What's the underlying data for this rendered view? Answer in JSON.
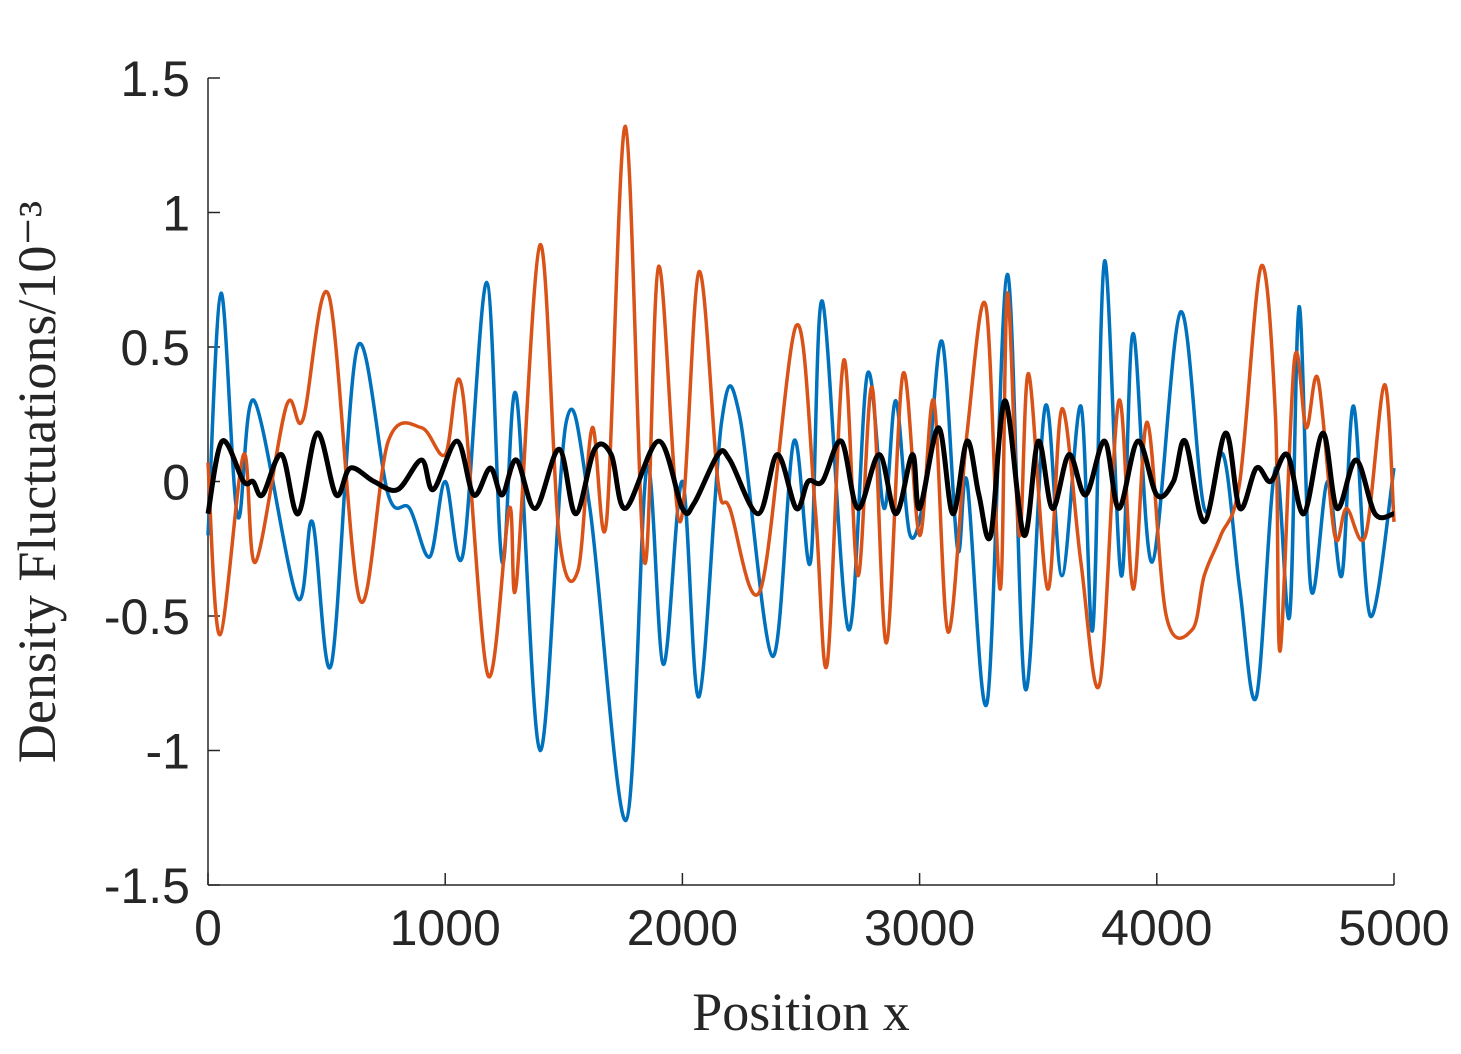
{
  "chart_data": {
    "type": "line",
    "xlabel": "Position x",
    "ylabel": "Density Fluctuations/10⁻³",
    "xlim": [
      0,
      5000
    ],
    "xticks": [
      0,
      1000,
      2000,
      3000,
      4000,
      5000
    ],
    "ylim": [
      -1.5,
      1.5
    ],
    "yticks": [
      -1.5,
      -1,
      -0.5,
      0,
      0.5,
      1,
      1.5
    ],
    "series": [
      {
        "color": "#0072BD",
        "x": [
          0,
          55,
          125,
          195,
          375,
          440,
          520,
          630,
          760,
          850,
          935,
          1000,
          1075,
          1175,
          1240,
          1300,
          1400,
          1510,
          1610,
          1762,
          1850,
          1920,
          2000,
          2070,
          2165,
          2240,
          2380,
          2470,
          2540,
          2590,
          2700,
          2780,
          2850,
          2900,
          2960,
          3030,
          3095,
          3160,
          3200,
          3285,
          3370,
          3445,
          3530,
          3600,
          3680,
          3730,
          3780,
          3850,
          3900,
          3980,
          4100,
          4200,
          4280,
          4350,
          4420,
          4500,
          4560,
          4600,
          4650,
          4720,
          4780,
          4830,
          4900,
          5000
        ],
        "values": [
          -0.2,
          0.7,
          -0.13,
          0.3,
          -0.43,
          -0.15,
          -0.68,
          0.5,
          -0.05,
          -0.1,
          -0.28,
          0.0,
          -0.27,
          0.74,
          -0.3,
          0.32,
          -1.0,
          0.22,
          -0.1,
          -1.26,
          0.05,
          -0.68,
          0.0,
          -0.8,
          0.22,
          0.25,
          -0.65,
          0.15,
          -0.3,
          0.67,
          -0.55,
          0.4,
          -0.1,
          0.3,
          -0.2,
          0.0,
          0.52,
          -0.25,
          0.0,
          -0.82,
          0.77,
          -0.77,
          0.28,
          -0.35,
          0.28,
          -0.55,
          0.82,
          -0.35,
          0.55,
          -0.3,
          0.63,
          -0.1,
          0.1,
          -0.4,
          -0.8,
          0.05,
          -0.5,
          0.65,
          -0.4,
          0.0,
          -0.35,
          0.28,
          -0.5,
          0.05
        ]
      },
      {
        "color": "#D95319",
        "x": [
          0,
          50,
          150,
          200,
          330,
          400,
          510,
          640,
          760,
          900,
          1000,
          1070,
          1180,
          1270,
          1300,
          1400,
          1480,
          1560,
          1620,
          1680,
          1760,
          1840,
          1900,
          1990,
          2070,
          2150,
          2200,
          2330,
          2480,
          2560,
          2610,
          2680,
          2740,
          2800,
          2860,
          2930,
          3000,
          3060,
          3120,
          3200,
          3280,
          3340,
          3370,
          3420,
          3460,
          3540,
          3600,
          3680,
          3760,
          3840,
          3900,
          3960,
          4040,
          4150,
          4200,
          4270,
          4350,
          4440,
          4500,
          4520,
          4580,
          4630,
          4680,
          4750,
          4800,
          4880,
          4960,
          5000
        ],
        "values": [
          0.07,
          -0.57,
          0.1,
          -0.3,
          0.28,
          0.23,
          0.69,
          -0.44,
          0.15,
          0.2,
          0.1,
          0.35,
          -0.72,
          -0.1,
          -0.38,
          0.88,
          -0.2,
          -0.33,
          0.2,
          -0.15,
          1.32,
          -0.3,
          0.8,
          -0.15,
          0.78,
          0.0,
          -0.1,
          -0.4,
          0.58,
          -0.1,
          -0.68,
          0.45,
          -0.35,
          0.35,
          -0.6,
          0.4,
          -0.2,
          0.3,
          -0.56,
          0.18,
          0.65,
          -0.4,
          0.7,
          -0.2,
          0.4,
          -0.4,
          0.27,
          -0.3,
          -0.75,
          0.3,
          -0.4,
          0.22,
          -0.5,
          -0.55,
          -0.35,
          -0.2,
          0.0,
          0.8,
          0.25,
          -0.63,
          0.45,
          0.2,
          0.38,
          -0.2,
          -0.1,
          -0.2,
          0.36,
          -0.15
        ]
      },
      {
        "color": "#000000",
        "x": [
          0,
          60,
          150,
          190,
          230,
          310,
          380,
          460,
          540,
          600,
          700,
          800,
          900,
          950,
          1050,
          1120,
          1190,
          1240,
          1300,
          1380,
          1480,
          1550,
          1630,
          1700,
          1760,
          1900,
          2000,
          2050,
          2150,
          2200,
          2320,
          2400,
          2480,
          2530,
          2590,
          2670,
          2740,
          2830,
          2900,
          2970,
          3000,
          3080,
          3140,
          3200,
          3250,
          3300,
          3360,
          3440,
          3500,
          3560,
          3630,
          3700,
          3780,
          3840,
          3920,
          4000,
          4070,
          4120,
          4200,
          4290,
          4350,
          4420,
          4480,
          4550,
          4620,
          4700,
          4760,
          4840,
          4920,
          5000
        ],
        "values": [
          -0.12,
          0.15,
          0.0,
          0.0,
          -0.05,
          0.1,
          -0.12,
          0.18,
          -0.05,
          0.05,
          0.0,
          -0.03,
          0.08,
          -0.03,
          0.15,
          -0.05,
          0.05,
          -0.05,
          0.08,
          -0.1,
          0.12,
          -0.12,
          0.12,
          0.1,
          -0.1,
          0.15,
          -0.1,
          -0.08,
          0.1,
          0.08,
          -0.12,
          0.1,
          -0.1,
          0.0,
          0.0,
          0.15,
          -0.1,
          0.1,
          -0.12,
          0.1,
          -0.1,
          0.2,
          -0.12,
          0.15,
          -0.05,
          -0.2,
          0.3,
          -0.2,
          0.15,
          -0.1,
          0.1,
          -0.05,
          0.15,
          -0.1,
          0.15,
          -0.05,
          0.0,
          0.15,
          -0.15,
          0.18,
          -0.1,
          0.05,
          0.0,
          0.1,
          -0.12,
          0.18,
          -0.1,
          0.08,
          -0.12,
          -0.12
        ]
      }
    ]
  }
}
